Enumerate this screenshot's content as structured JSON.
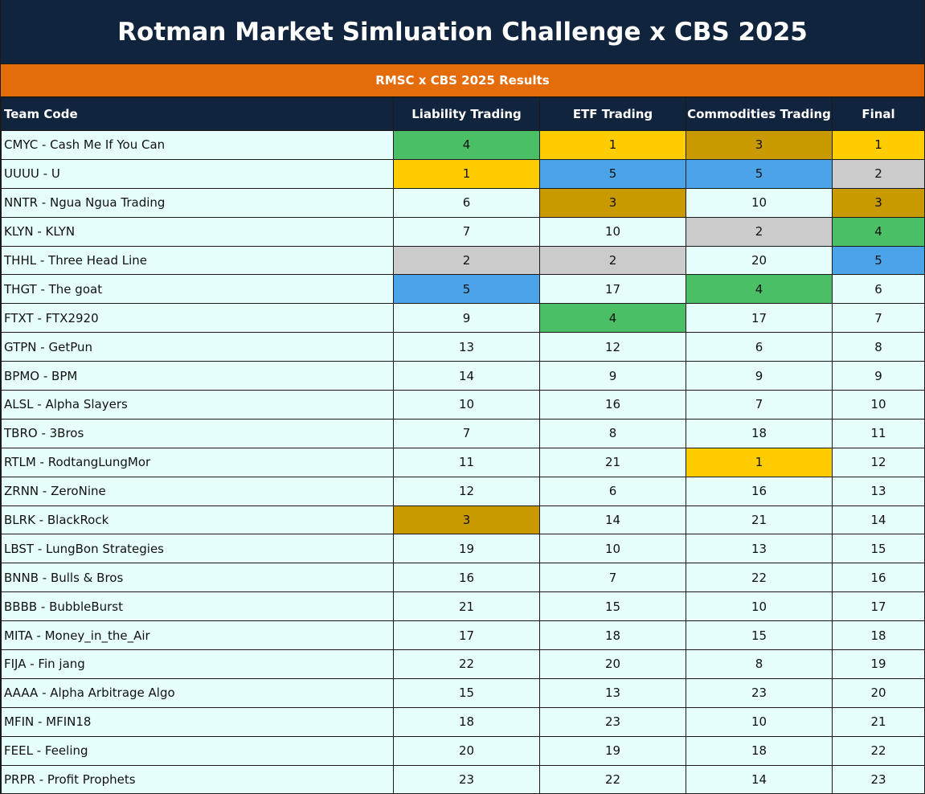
{
  "title": "Rotman Market Simluation Challenge x CBS 2025",
  "subtitle": "RMSC x CBS 2025 Results",
  "headers": {
    "team": "Team Code",
    "liability": "Liability Trading",
    "etf": "ETF Trading",
    "commodities": "Commodities Trading",
    "final": "Final"
  },
  "colors": {
    "header_navy": "#10243e",
    "subtitle_orange": "#e46c0a",
    "row_background": "#e6fffd",
    "green": "#4bbf66",
    "gold": "#ffcc00",
    "bronze": "#c99a00",
    "blue": "#4ba3e8",
    "silver": "#cbcbcb"
  },
  "rows": [
    {
      "team": "CMYC - Cash Me If You Can",
      "liability": "4",
      "etf": "1",
      "commodities": "3",
      "final": "1"
    },
    {
      "team": "UUUU - U",
      "liability": "1",
      "etf": "5",
      "commodities": "5",
      "final": "2"
    },
    {
      "team": "NNTR - Ngua Ngua Trading",
      "liability": "6",
      "etf": "3",
      "commodities": "10",
      "final": "3"
    },
    {
      "team": "KLYN - KLYN",
      "liability": "7",
      "etf": "10",
      "commodities": "2",
      "final": "4"
    },
    {
      "team": "THHL - Three Head Line",
      "liability": "2",
      "etf": "2",
      "commodities": "20",
      "final": "5"
    },
    {
      "team": "THGT - The goat",
      "liability": "5",
      "etf": "17",
      "commodities": "4",
      "final": "6"
    },
    {
      "team": "FTXT - FTX2920",
      "liability": "9",
      "etf": "4",
      "commodities": "17",
      "final": "7"
    },
    {
      "team": "GTPN - GetPun",
      "liability": "13",
      "etf": "12",
      "commodities": "6",
      "final": "8"
    },
    {
      "team": "BPMO - BPM",
      "liability": "14",
      "etf": "9",
      "commodities": "9",
      "final": "9"
    },
    {
      "team": "ALSL - Alpha Slayers",
      "liability": "10",
      "etf": "16",
      "commodities": "7",
      "final": "10"
    },
    {
      "team": "TBRO - 3Bros",
      "liability": "7",
      "etf": "8",
      "commodities": "18",
      "final": "11"
    },
    {
      "team": "RTLM - RodtangLungMor",
      "liability": "11",
      "etf": "21",
      "commodities": "1",
      "final": "12"
    },
    {
      "team": "ZRNN - ZeroNine",
      "liability": "12",
      "etf": "6",
      "commodities": "16",
      "final": "13"
    },
    {
      "team": "BLRK - BlackRock",
      "liability": "3",
      "etf": "14",
      "commodities": "21",
      "final": "14"
    },
    {
      "team": "LBST - LungBon Strategies",
      "liability": "19",
      "etf": "10",
      "commodities": "13",
      "final": "15"
    },
    {
      "team": "BNNB - Bulls & Bros",
      "liability": "16",
      "etf": "7",
      "commodities": "22",
      "final": "16"
    },
    {
      "team": "BBBB - BubbleBurst",
      "liability": "21",
      "etf": "15",
      "commodities": "10",
      "final": "17"
    },
    {
      "team": "MITA - Money_in_the_Air",
      "liability": "17",
      "etf": "18",
      "commodities": "15",
      "final": "18"
    },
    {
      "team": "FIJA - Fin jang",
      "liability": "22",
      "etf": "20",
      "commodities": "8",
      "final": "19"
    },
    {
      "team": "AAAA - Alpha Arbitrage Algo",
      "liability": "15",
      "etf": "13",
      "commodities": "23",
      "final": "20"
    },
    {
      "team": "MFIN - MFIN18",
      "liability": "18",
      "etf": "23",
      "commodities": "10",
      "final": "21"
    },
    {
      "team": "FEEL - Feeling",
      "liability": "20",
      "etf": "19",
      "commodities": "18",
      "final": "22"
    },
    {
      "team": "PRPR - Profit Prophets",
      "liability": "23",
      "etf": "22",
      "commodities": "14",
      "final": "23"
    }
  ]
}
